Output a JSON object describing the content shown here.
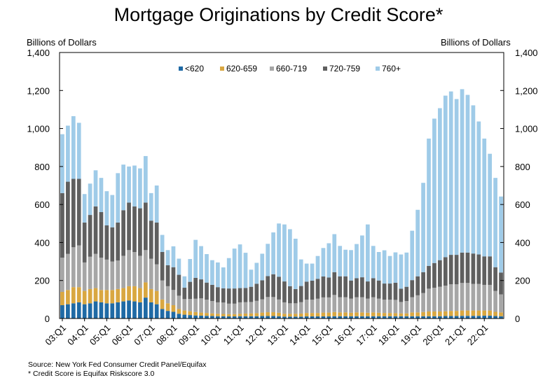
{
  "chart_data": {
    "type": "bar",
    "stacked": true,
    "title": "Mortgage Originations by Credit Score*",
    "ylabel_left": "Billions of Dollars",
    "ylabel_right": "Billions of Dollars",
    "ylim": [
      0,
      1400
    ],
    "yticks": [
      "0",
      "200",
      "400",
      "600",
      "800",
      "1,000",
      "1,200",
      "1,400"
    ],
    "ytick_values": [
      0,
      200,
      400,
      600,
      800,
      1000,
      1200,
      1400
    ],
    "xtick_labels": [
      "03:Q1",
      "04:Q1",
      "05:Q1",
      "06:Q1",
      "07:Q1",
      "08:Q1",
      "09:Q1",
      "10:Q1",
      "11:Q1",
      "12:Q1",
      "13:Q1",
      "14:Q1",
      "15:Q1",
      "16:Q1",
      "17:Q1",
      "18:Q1",
      "19:Q1",
      "20:Q1",
      "21:Q1",
      "22:Q1"
    ],
    "legend_position": "top-center",
    "grid": false,
    "series": [
      {
        "name": "<620",
        "color": "#1f6aa5",
        "values": [
          70,
          75,
          80,
          85,
          75,
          80,
          90,
          85,
          80,
          80,
          85,
          90,
          95,
          90,
          85,
          110,
          85,
          75,
          50,
          40,
          35,
          25,
          20,
          18,
          16,
          15,
          14,
          13,
          12,
          12,
          11,
          11,
          12,
          12,
          12,
          12,
          13,
          13,
          13,
          12,
          10,
          10,
          10,
          10,
          11,
          11,
          11,
          11,
          11,
          12,
          12,
          12,
          12,
          12,
          12,
          12,
          12,
          12,
          12,
          12,
          12,
          12,
          12,
          12,
          12,
          12,
          12,
          12,
          12,
          13,
          13,
          13,
          14,
          14,
          14,
          14,
          15,
          15,
          13,
          12
        ]
      },
      {
        "name": "620-659",
        "color": "#d9a741",
        "values": [
          70,
          75,
          85,
          80,
          70,
          75,
          70,
          65,
          70,
          70,
          70,
          70,
          75,
          80,
          75,
          80,
          70,
          70,
          50,
          40,
          35,
          25,
          22,
          20,
          18,
          16,
          15,
          14,
          13,
          12,
          12,
          12,
          13,
          14,
          15,
          16,
          18,
          20,
          20,
          18,
          15,
          15,
          15,
          16,
          18,
          18,
          18,
          20,
          20,
          22,
          20,
          20,
          18,
          20,
          20,
          18,
          20,
          18,
          17,
          17,
          16,
          15,
          15,
          20,
          20,
          22,
          25,
          25,
          25,
          25,
          27,
          27,
          28,
          28,
          28,
          28,
          27,
          27,
          22,
          20
        ]
      },
      {
        "name": "660-719",
        "color": "#a6a6a6",
        "values": [
          180,
          190,
          210,
          220,
          150,
          170,
          180,
          170,
          160,
          150,
          150,
          170,
          190,
          180,
          170,
          170,
          160,
          140,
          100,
          90,
          80,
          70,
          60,
          65,
          70,
          75,
          70,
          65,
          60,
          60,
          55,
          55,
          60,
          60,
          60,
          65,
          70,
          80,
          80,
          70,
          60,
          55,
          55,
          60,
          70,
          70,
          75,
          80,
          80,
          90,
          80,
          80,
          75,
          80,
          80,
          75,
          80,
          75,
          70,
          70,
          70,
          60,
          65,
          80,
          90,
          100,
          120,
          125,
          130,
          135,
          140,
          140,
          145,
          145,
          140,
          140,
          135,
          135,
          110,
          95
        ]
      },
      {
        "name": "720-759",
        "color": "#5f5f5f",
        "values": [
          340,
          380,
          360,
          350,
          210,
          220,
          250,
          240,
          180,
          180,
          200,
          240,
          250,
          240,
          250,
          250,
          200,
          220,
          150,
          110,
          120,
          110,
          60,
          90,
          110,
          100,
          90,
          85,
          80,
          75,
          80,
          80,
          75,
          75,
          80,
          90,
          100,
          110,
          120,
          120,
          110,
          90,
          75,
          85,
          95,
          100,
          105,
          110,
          105,
          120,
          110,
          110,
          95,
          100,
          105,
          90,
          100,
          95,
          85,
          85,
          90,
          70,
          75,
          90,
          100,
          110,
          120,
          130,
          140,
          150,
          155,
          155,
          160,
          160,
          160,
          155,
          150,
          150,
          125,
          115
        ]
      },
      {
        "name": "760+",
        "color": "#9fcbe8",
        "values": [
          310,
          295,
          330,
          295,
          150,
          165,
          190,
          180,
          180,
          170,
          260,
          240,
          190,
          215,
          210,
          245,
          145,
          195,
          90,
          80,
          110,
          85,
          60,
          120,
          200,
          175,
          150,
          130,
          130,
          110,
          160,
          210,
          230,
          185,
          90,
          110,
          140,
          170,
          220,
          280,
          300,
          300,
          265,
          140,
          95,
          90,
          120,
          150,
          180,
          200,
          160,
          140,
          160,
          180,
          220,
          300,
          170,
          150,
          175,
          145,
          160,
          180,
          180,
          260,
          350,
          470,
          670,
          760,
          800,
          850,
          860,
          820,
          860,
          830,
          780,
          700,
          620,
          540,
          470,
          400
        ]
      }
    ]
  },
  "footnote_source": "Source: New York Fed Consumer Credit Panel/Equifax",
  "footnote_score": "* Credit Score is Equifax Riskscore 3.0"
}
